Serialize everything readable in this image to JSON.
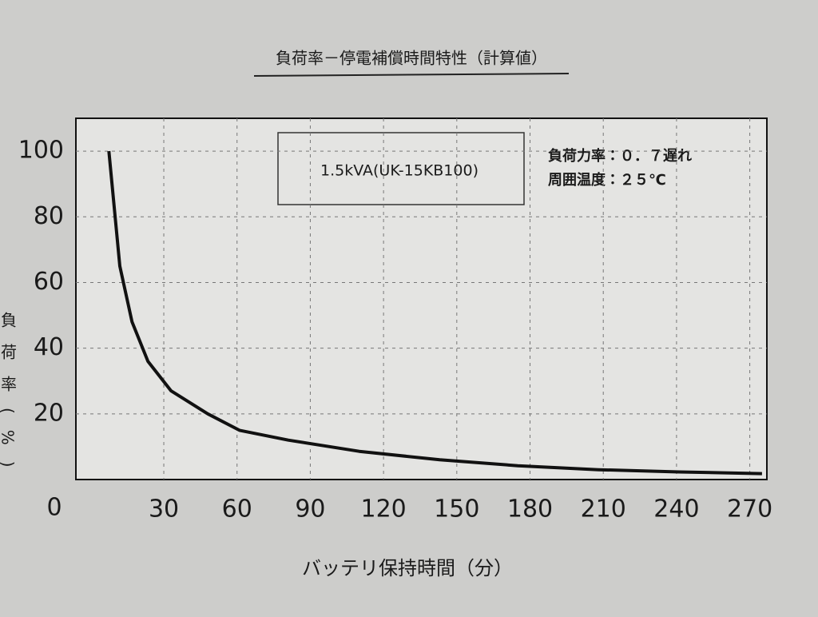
{
  "chart_data": {
    "type": "line",
    "title": "負荷率－停電補償時間特性（計算値）",
    "xlabel": "バッテリ保持時間（分）",
    "ylabel": "負荷率(%)",
    "origin_label": "0",
    "annotation_box": "1.5kVA(UK-15KB100)",
    "notes": [
      "負荷力率：０．７遅れ",
      "周囲温度：２５℃"
    ],
    "x": [
      7.5,
      12,
      17,
      23.5,
      33,
      48,
      61,
      81,
      110,
      143,
      175,
      208,
      241,
      275
    ],
    "values": [
      100,
      65,
      48,
      36,
      27,
      20,
      15,
      12,
      8.6,
      6,
      4.2,
      3,
      2.3,
      1.8
    ],
    "color": "#111111",
    "xlim": [
      -6,
      277
    ],
    "ylim": [
      0,
      110
    ],
    "xticks": [
      30,
      60,
      90,
      120,
      150,
      180,
      210,
      240,
      270
    ],
    "yticks": [
      20,
      40,
      60,
      80,
      100
    ],
    "grid": true
  }
}
